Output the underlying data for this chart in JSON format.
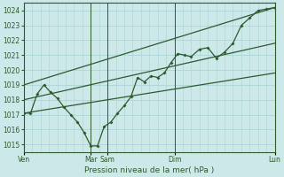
{
  "bg_color": "#cce8e8",
  "grid_color": "#b0d8d8",
  "line_color": "#2d5a2d",
  "xlabel": "Pression niveau de la mer( hPa )",
  "ylim": [
    1014.5,
    1024.5
  ],
  "yticks": [
    1015,
    1016,
    1017,
    1018,
    1019,
    1020,
    1021,
    1022,
    1023,
    1024
  ],
  "day_labels": [
    "Ven",
    "",
    "Mar",
    "Sam",
    "",
    "Dim",
    "",
    "Lun"
  ],
  "xtick_positions": [
    0,
    4,
    5,
    9,
    15
  ],
  "xtick_labels": [
    "Ven",
    "Mar",
    "Sam",
    "Dim",
    "Lun"
  ],
  "vline_positions": [
    0,
    4,
    5,
    9,
    15
  ],
  "main_line_x": [
    0,
    0.4,
    0.8,
    1.2,
    1.6,
    2.0,
    2.4,
    2.8,
    3.2,
    3.6,
    4.0,
    4.4,
    4.8,
    5.2,
    5.6,
    6.0,
    6.4,
    6.8,
    7.2,
    7.6,
    8.0,
    8.4,
    8.8,
    9.2,
    9.6,
    10.0,
    10.5,
    11.0,
    11.5,
    12.0,
    12.5,
    13.0,
    13.5,
    14.0,
    14.5,
    15.0
  ],
  "main_line_y": [
    1017.1,
    1017.1,
    1018.4,
    1019.0,
    1018.5,
    1018.1,
    1017.5,
    1017.0,
    1016.5,
    1015.8,
    1014.9,
    1014.9,
    1016.2,
    1016.5,
    1017.1,
    1017.6,
    1018.2,
    1019.5,
    1019.2,
    1019.6,
    1019.5,
    1019.8,
    1020.5,
    1021.1,
    1021.0,
    1020.9,
    1021.4,
    1021.5,
    1020.8,
    1021.2,
    1021.8,
    1023.0,
    1023.5,
    1024.0,
    1024.1,
    1024.2
  ],
  "upper_line": [
    [
      0,
      1019.0
    ],
    [
      15,
      1024.2
    ]
  ],
  "lower_line": [
    [
      0,
      1017.1
    ],
    [
      15,
      1019.8
    ]
  ],
  "mid_line": [
    [
      0,
      1018.0
    ],
    [
      15,
      1021.8
    ]
  ],
  "total_x": 15.0,
  "minor_xtick_interval": 0.5
}
